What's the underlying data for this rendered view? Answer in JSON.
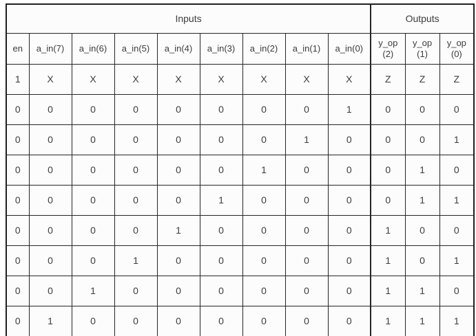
{
  "table": {
    "group_headers": [
      {
        "label": "Inputs",
        "colspan": 9
      },
      {
        "label": "Outputs",
        "colspan": 3
      }
    ],
    "column_headers": [
      "en",
      "a_in(7)",
      "a_in(6)",
      "a_in(5)",
      "a_in(4)",
      "a_in(3)",
      "a_in(2)",
      "a_in(1)",
      "a_in(0)",
      "y_op\n(2)",
      "y_op\n(1)",
      "y_op\n(0)"
    ],
    "rows": [
      [
        "1",
        "X",
        "X",
        "X",
        "X",
        "X",
        "X",
        "X",
        "X",
        "Z",
        "Z",
        "Z"
      ],
      [
        "0",
        "0",
        "0",
        "0",
        "0",
        "0",
        "0",
        "0",
        "1",
        "0",
        "0",
        "0"
      ],
      [
        "0",
        "0",
        "0",
        "0",
        "0",
        "0",
        "0",
        "1",
        "0",
        "0",
        "0",
        "1"
      ],
      [
        "0",
        "0",
        "0",
        "0",
        "0",
        "0",
        "1",
        "0",
        "0",
        "0",
        "1",
        "0"
      ],
      [
        "0",
        "0",
        "0",
        "0",
        "0",
        "1",
        "0",
        "0",
        "0",
        "0",
        "1",
        "1"
      ],
      [
        "0",
        "0",
        "0",
        "0",
        "1",
        "0",
        "0",
        "0",
        "0",
        "1",
        "0",
        "0"
      ],
      [
        "0",
        "0",
        "0",
        "1",
        "0",
        "0",
        "0",
        "0",
        "0",
        "1",
        "0",
        "1"
      ],
      [
        "0",
        "0",
        "1",
        "0",
        "0",
        "0",
        "0",
        "0",
        "0",
        "1",
        "1",
        "0"
      ],
      [
        "0",
        "1",
        "0",
        "0",
        "0",
        "0",
        "0",
        "0",
        "0",
        "1",
        "1",
        "1"
      ]
    ]
  },
  "chart_data": {
    "type": "table",
    "title": "",
    "column_groups": [
      "Inputs",
      "Outputs"
    ],
    "columns": [
      "en",
      "a_in(7)",
      "a_in(6)",
      "a_in(5)",
      "a_in(4)",
      "a_in(3)",
      "a_in(2)",
      "a_in(1)",
      "a_in(0)",
      "y_op(2)",
      "y_op(1)",
      "y_op(0)"
    ],
    "rows": [
      [
        "1",
        "X",
        "X",
        "X",
        "X",
        "X",
        "X",
        "X",
        "X",
        "Z",
        "Z",
        "Z"
      ],
      [
        "0",
        "0",
        "0",
        "0",
        "0",
        "0",
        "0",
        "0",
        "1",
        "0",
        "0",
        "0"
      ],
      [
        "0",
        "0",
        "0",
        "0",
        "0",
        "0",
        "0",
        "1",
        "0",
        "0",
        "0",
        "1"
      ],
      [
        "0",
        "0",
        "0",
        "0",
        "0",
        "0",
        "1",
        "0",
        "0",
        "0",
        "1",
        "0"
      ],
      [
        "0",
        "0",
        "0",
        "0",
        "0",
        "1",
        "0",
        "0",
        "0",
        "0",
        "1",
        "1"
      ],
      [
        "0",
        "0",
        "0",
        "0",
        "1",
        "0",
        "0",
        "0",
        "0",
        "1",
        "0",
        "0"
      ],
      [
        "0",
        "0",
        "0",
        "1",
        "0",
        "0",
        "0",
        "0",
        "0",
        "1",
        "0",
        "1"
      ],
      [
        "0",
        "0",
        "1",
        "0",
        "0",
        "0",
        "0",
        "0",
        "0",
        "1",
        "1",
        "0"
      ],
      [
        "0",
        "1",
        "0",
        "0",
        "0",
        "0",
        "0",
        "0",
        "0",
        "1",
        "1",
        "1"
      ]
    ]
  },
  "colors": {
    "border": "#1e1e1e",
    "inner_border": "#242424",
    "text": "#3c3c3c",
    "background": "#fcfcfc"
  }
}
